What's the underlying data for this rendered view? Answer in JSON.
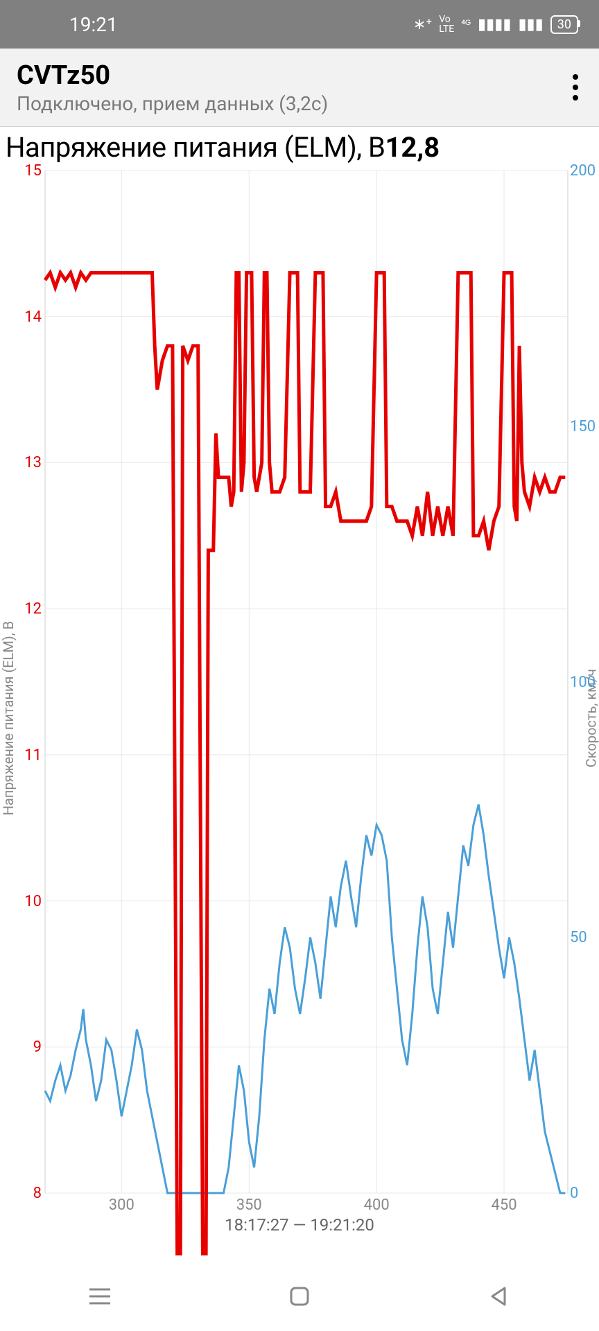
{
  "status": {
    "time": "19:21",
    "battery": "30"
  },
  "app": {
    "title": "CVTz50",
    "subtitle": "Подключено, прием данных (3,2с)"
  },
  "chart": {
    "title": "Напряжение питания (ELM), В",
    "current_value": "12,8",
    "y_left_label": "Напряжение питания (ELM), В",
    "y_right_label": "Скорость, км/ч",
    "time_range": "18:17:27 — 19:21:20",
    "plot": {
      "x_min": 270,
      "x_max": 475,
      "y_left_min": 8,
      "y_left_max": 15,
      "y_right_min": 0,
      "y_right_max": 200,
      "x_ticks": [
        300,
        350,
        400,
        450
      ],
      "y_left_ticks": [
        8,
        9,
        10,
        11,
        12,
        13,
        14,
        15
      ],
      "y_right_ticks": [
        0,
        50,
        100,
        150,
        200
      ],
      "grid_color": "#e8e8e8",
      "border_color": "#cccccc",
      "voltage_color": "#e60000",
      "voltage_width": 5,
      "speed_color": "#4a9fd8",
      "speed_width": 3,
      "voltage_data": [
        [
          270,
          14.25
        ],
        [
          272,
          14.3
        ],
        [
          274,
          14.2
        ],
        [
          276,
          14.3
        ],
        [
          278,
          14.25
        ],
        [
          280,
          14.3
        ],
        [
          282,
          14.2
        ],
        [
          284,
          14.3
        ],
        [
          286,
          14.25
        ],
        [
          288,
          14.3
        ],
        [
          290,
          14.3
        ],
        [
          292,
          14.3
        ],
        [
          294,
          14.3
        ],
        [
          296,
          14.3
        ],
        [
          298,
          14.3
        ],
        [
          300,
          14.3
        ],
        [
          302,
          14.3
        ],
        [
          304,
          14.3
        ],
        [
          306,
          14.3
        ],
        [
          308,
          14.3
        ],
        [
          310,
          14.3
        ],
        [
          312,
          14.3
        ],
        [
          313,
          13.8
        ],
        [
          314,
          13.5
        ],
        [
          316,
          13.7
        ],
        [
          318,
          13.8
        ],
        [
          320,
          13.8
        ],
        [
          322,
          7.0
        ],
        [
          323,
          7.0
        ],
        [
          324,
          13.8
        ],
        [
          326,
          13.7
        ],
        [
          328,
          13.8
        ],
        [
          330,
          13.8
        ],
        [
          332,
          7.0
        ],
        [
          333,
          7.0
        ],
        [
          334,
          12.4
        ],
        [
          335,
          12.4
        ],
        [
          336,
          12.4
        ],
        [
          337,
          13.2
        ],
        [
          338,
          12.9
        ],
        [
          340,
          12.9
        ],
        [
          342,
          12.9
        ],
        [
          343,
          12.7
        ],
        [
          344,
          12.8
        ],
        [
          345,
          14.3
        ],
        [
          346,
          14.3
        ],
        [
          347,
          12.8
        ],
        [
          348,
          13.0
        ],
        [
          349,
          14.3
        ],
        [
          350,
          14.3
        ],
        [
          351,
          14.3
        ],
        [
          352,
          12.9
        ],
        [
          353,
          12.8
        ],
        [
          354,
          12.9
        ],
        [
          355,
          13.0
        ],
        [
          356,
          14.3
        ],
        [
          357,
          14.3
        ],
        [
          358,
          13.0
        ],
        [
          359,
          12.8
        ],
        [
          360,
          12.8
        ],
        [
          362,
          12.8
        ],
        [
          364,
          12.9
        ],
        [
          366,
          14.3
        ],
        [
          367,
          14.3
        ],
        [
          368,
          14.3
        ],
        [
          369,
          14.3
        ],
        [
          370,
          12.8
        ],
        [
          372,
          12.8
        ],
        [
          374,
          12.8
        ],
        [
          376,
          14.3
        ],
        [
          377,
          14.3
        ],
        [
          378,
          14.3
        ],
        [
          379,
          14.3
        ],
        [
          380,
          12.7
        ],
        [
          382,
          12.7
        ],
        [
          384,
          12.8
        ],
        [
          386,
          12.6
        ],
        [
          388,
          12.6
        ],
        [
          390,
          12.6
        ],
        [
          392,
          12.6
        ],
        [
          394,
          12.6
        ],
        [
          396,
          12.6
        ],
        [
          398,
          12.7
        ],
        [
          400,
          14.3
        ],
        [
          401,
          14.3
        ],
        [
          402,
          14.3
        ],
        [
          403,
          14.3
        ],
        [
          404,
          12.7
        ],
        [
          406,
          12.7
        ],
        [
          408,
          12.6
        ],
        [
          410,
          12.6
        ],
        [
          412,
          12.6
        ],
        [
          414,
          12.5
        ],
        [
          416,
          12.7
        ],
        [
          418,
          12.5
        ],
        [
          420,
          12.8
        ],
        [
          422,
          12.5
        ],
        [
          424,
          12.7
        ],
        [
          426,
          12.5
        ],
        [
          428,
          12.7
        ],
        [
          430,
          12.5
        ],
        [
          432,
          14.3
        ],
        [
          433,
          14.3
        ],
        [
          434,
          14.3
        ],
        [
          435,
          14.3
        ],
        [
          436,
          14.3
        ],
        [
          437,
          14.3
        ],
        [
          438,
          12.5
        ],
        [
          440,
          12.5
        ],
        [
          442,
          12.6
        ],
        [
          444,
          12.4
        ],
        [
          446,
          12.6
        ],
        [
          448,
          12.7
        ],
        [
          450,
          14.3
        ],
        [
          451,
          14.3
        ],
        [
          452,
          14.3
        ],
        [
          453,
          14.3
        ],
        [
          454,
          12.7
        ],
        [
          455,
          12.6
        ],
        [
          456,
          13.8
        ],
        [
          457,
          13.0
        ],
        [
          458,
          12.8
        ],
        [
          460,
          12.7
        ],
        [
          462,
          12.9
        ],
        [
          464,
          12.8
        ],
        [
          466,
          12.9
        ],
        [
          468,
          12.8
        ],
        [
          470,
          12.8
        ],
        [
          472,
          12.9
        ],
        [
          474,
          12.9
        ]
      ],
      "speed_data": [
        [
          270,
          20
        ],
        [
          272,
          18
        ],
        [
          274,
          22
        ],
        [
          276,
          25
        ],
        [
          278,
          20
        ],
        [
          280,
          23
        ],
        [
          282,
          28
        ],
        [
          284,
          32
        ],
        [
          285,
          36
        ],
        [
          286,
          30
        ],
        [
          288,
          25
        ],
        [
          290,
          18
        ],
        [
          292,
          22
        ],
        [
          294,
          30
        ],
        [
          296,
          28
        ],
        [
          298,
          22
        ],
        [
          300,
          15
        ],
        [
          302,
          20
        ],
        [
          304,
          25
        ],
        [
          306,
          32
        ],
        [
          308,
          28
        ],
        [
          310,
          20
        ],
        [
          312,
          15
        ],
        [
          314,
          10
        ],
        [
          316,
          5
        ],
        [
          318,
          0
        ],
        [
          320,
          0
        ],
        [
          322,
          0
        ],
        [
          324,
          0
        ],
        [
          326,
          0
        ],
        [
          328,
          0
        ],
        [
          330,
          0
        ],
        [
          332,
          0
        ],
        [
          334,
          0
        ],
        [
          336,
          0
        ],
        [
          338,
          0
        ],
        [
          340,
          0
        ],
        [
          342,
          5
        ],
        [
          344,
          15
        ],
        [
          346,
          25
        ],
        [
          348,
          20
        ],
        [
          350,
          10
        ],
        [
          352,
          5
        ],
        [
          354,
          15
        ],
        [
          356,
          30
        ],
        [
          358,
          40
        ],
        [
          360,
          35
        ],
        [
          362,
          45
        ],
        [
          364,
          52
        ],
        [
          366,
          48
        ],
        [
          368,
          40
        ],
        [
          370,
          35
        ],
        [
          372,
          42
        ],
        [
          374,
          50
        ],
        [
          376,
          45
        ],
        [
          378,
          38
        ],
        [
          380,
          48
        ],
        [
          382,
          58
        ],
        [
          384,
          52
        ],
        [
          386,
          60
        ],
        [
          388,
          65
        ],
        [
          390,
          58
        ],
        [
          392,
          52
        ],
        [
          394,
          62
        ],
        [
          396,
          70
        ],
        [
          398,
          66
        ],
        [
          400,
          72
        ],
        [
          402,
          70
        ],
        [
          404,
          65
        ],
        [
          406,
          50
        ],
        [
          408,
          40
        ],
        [
          410,
          30
        ],
        [
          412,
          25
        ],
        [
          414,
          35
        ],
        [
          416,
          48
        ],
        [
          418,
          58
        ],
        [
          420,
          52
        ],
        [
          422,
          40
        ],
        [
          424,
          35
        ],
        [
          426,
          45
        ],
        [
          428,
          55
        ],
        [
          430,
          48
        ],
        [
          432,
          58
        ],
        [
          434,
          68
        ],
        [
          436,
          64
        ],
        [
          438,
          72
        ],
        [
          440,
          76
        ],
        [
          442,
          70
        ],
        [
          444,
          62
        ],
        [
          446,
          55
        ],
        [
          448,
          48
        ],
        [
          450,
          42
        ],
        [
          452,
          50
        ],
        [
          454,
          45
        ],
        [
          456,
          38
        ],
        [
          458,
          30
        ],
        [
          460,
          22
        ],
        [
          462,
          28
        ],
        [
          464,
          20
        ],
        [
          466,
          12
        ],
        [
          468,
          8
        ],
        [
          470,
          4
        ],
        [
          472,
          0
        ],
        [
          474,
          0
        ]
      ]
    }
  }
}
